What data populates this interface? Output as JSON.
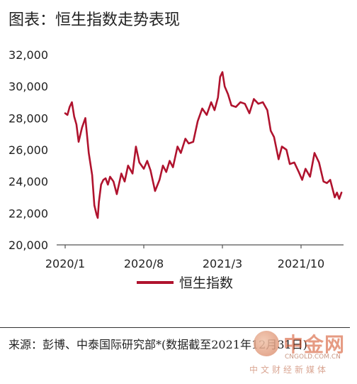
{
  "header": {
    "title": "图表：恒生指数走势表现"
  },
  "chart_data": {
    "type": "line",
    "title": "图表：恒生指数走势表现",
    "ylim": [
      20000,
      32000
    ],
    "y_ticks": [
      "32,000",
      "30,000",
      "28,000",
      "26,000",
      "24,000",
      "22,000",
      "20,000"
    ],
    "y_tick_values": [
      32000,
      30000,
      28000,
      26000,
      24000,
      22000,
      20000
    ],
    "x_ticks": [
      "2020/1",
      "2020/8",
      "2021/3",
      "2021/10"
    ],
    "x_tick_positions": [
      0,
      7,
      14,
      21
    ],
    "grid": false,
    "legend": "bottom-center",
    "color": "#b0132e",
    "series": [
      {
        "name": "恒生指数",
        "x": [
          0,
          0.2,
          0.4,
          0.6,
          0.8,
          1.0,
          1.2,
          1.5,
          1.8,
          2.1,
          2.4,
          2.6,
          2.8,
          2.9,
          3.0,
          3.2,
          3.4,
          3.6,
          3.8,
          4.0,
          4.3,
          4.6,
          5.0,
          5.3,
          5.6,
          6.0,
          6.3,
          6.6,
          7.0,
          7.3,
          7.6,
          8.0,
          8.4,
          8.7,
          9.0,
          9.3,
          9.6,
          10.0,
          10.3,
          10.7,
          11.0,
          11.4,
          11.8,
          12.2,
          12.6,
          13.0,
          13.3,
          13.6,
          13.8,
          14.0,
          14.2,
          14.5,
          14.8,
          15.2,
          15.6,
          16.0,
          16.4,
          16.8,
          17.2,
          17.6,
          18.0,
          18.3,
          18.6,
          19.0,
          19.3,
          19.7,
          20.0,
          20.4,
          20.8,
          21.1,
          21.4,
          21.8,
          22.2,
          22.6,
          23.0,
          23.3,
          23.6,
          24.0,
          24.2,
          24.4,
          24.6
        ],
        "values": [
          28300,
          28200,
          28700,
          29000,
          28100,
          27600,
          26500,
          27400,
          28000,
          25800,
          24400,
          22500,
          21900,
          21700,
          22700,
          23800,
          24100,
          24200,
          23800,
          24300,
          24000,
          23200,
          24500,
          24000,
          25000,
          24500,
          26200,
          25200,
          24800,
          25300,
          24700,
          23400,
          24100,
          25000,
          24600,
          25300,
          24900,
          26200,
          25800,
          26700,
          26400,
          26500,
          27800,
          28600,
          28200,
          29000,
          28500,
          29300,
          30600,
          30900,
          30000,
          29500,
          28800,
          28700,
          29000,
          28900,
          28300,
          29200,
          28900,
          29000,
          28500,
          27200,
          26800,
          25400,
          26200,
          26000,
          25100,
          25200,
          24600,
          24100,
          24800,
          24300,
          25800,
          25200,
          24000,
          23900,
          24100,
          23000,
          23300,
          22900,
          23300
        ]
      }
    ]
  },
  "legend": {
    "label": "恒生指数"
  },
  "footer": {
    "source": "来源：彭博、中泰国际研究部*(数据截至2021年12月31日)"
  },
  "watermark": {
    "logo": "中金网",
    "url": "CNGOLD.COM.CN",
    "subtitle": "中文财经新媒体"
  }
}
